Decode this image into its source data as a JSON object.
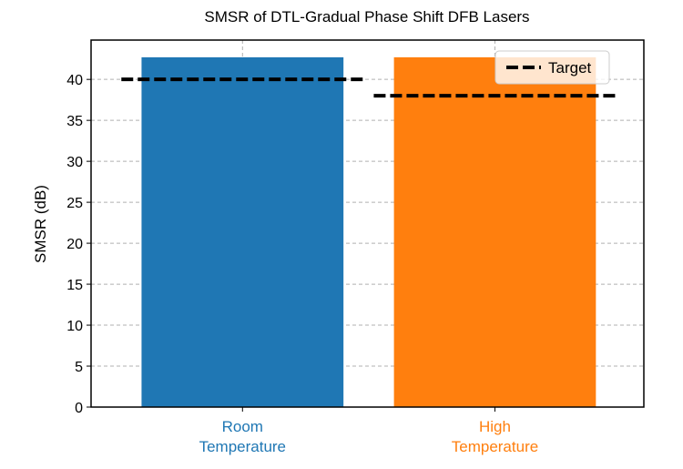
{
  "chart_data": {
    "type": "bar",
    "title": "SMSR of DTL-Gradual Phase Shift DFB Lasers",
    "xlabel": "",
    "ylabel": "SMSR (dB)",
    "categories": [
      "Room\nTemperature",
      "High\nTemperature"
    ],
    "category_lines": [
      [
        "Room",
        "Temperature"
      ],
      [
        "High",
        "Temperature"
      ]
    ],
    "category_colors": [
      "#1f77b4",
      "#ff7f0e"
    ],
    "values": [
      42.7,
      42.7
    ],
    "targets": [
      40,
      38
    ],
    "legend": {
      "entries": [
        "Target"
      ],
      "placement": "upper-right"
    },
    "ylim": [
      0,
      44.8
    ],
    "yticks": [
      0,
      5,
      10,
      15,
      20,
      25,
      30,
      35,
      40
    ],
    "grid": true
  }
}
